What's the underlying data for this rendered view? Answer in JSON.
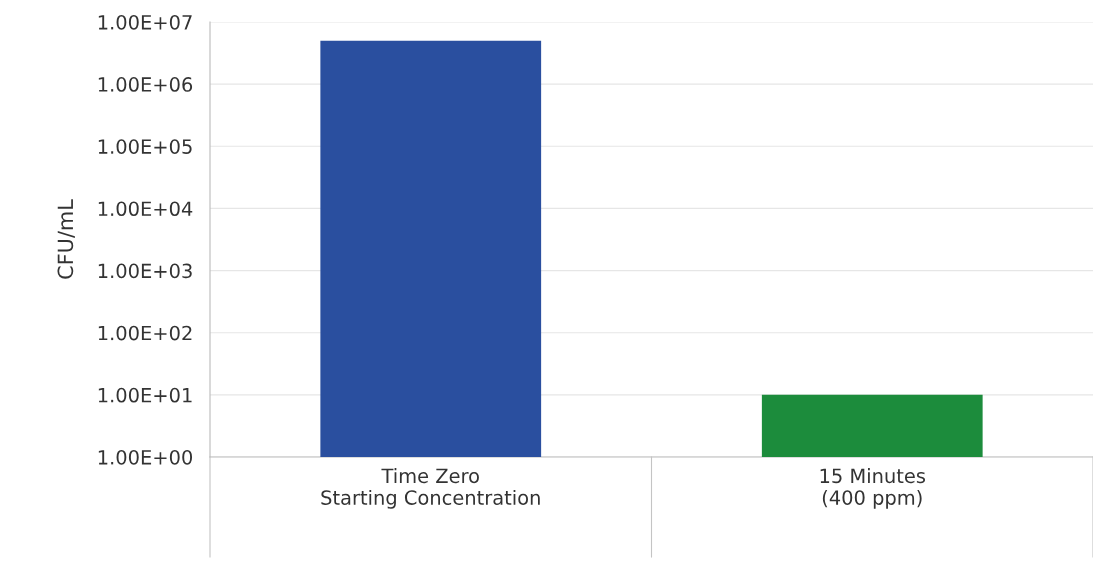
{
  "chart_data": {
    "type": "bar",
    "ylabel": "CFU/mL",
    "categories": [
      "Time Zero\nStarting Concentration",
      "15 Minutes\n(400 ppm)"
    ],
    "values": [
      5000000,
      10
    ],
    "colors": [
      "#2a4f9f",
      "#1c8c3c"
    ],
    "log": true,
    "ylim": [
      1,
      10000000
    ],
    "yticks": [
      {
        "value": 1,
        "label": "1.00E+00"
      },
      {
        "value": 10,
        "label": "1.00E+01"
      },
      {
        "value": 100,
        "label": "1.00E+02"
      },
      {
        "value": 1000,
        "label": "1.00E+03"
      },
      {
        "value": 10000,
        "label": "1.00E+04"
      },
      {
        "value": 100000,
        "label": "1.00E+05"
      },
      {
        "value": 1000000,
        "label": "1.00E+06"
      },
      {
        "value": 10000000,
        "label": "1.00E+07"
      }
    ],
    "grid": "y"
  }
}
